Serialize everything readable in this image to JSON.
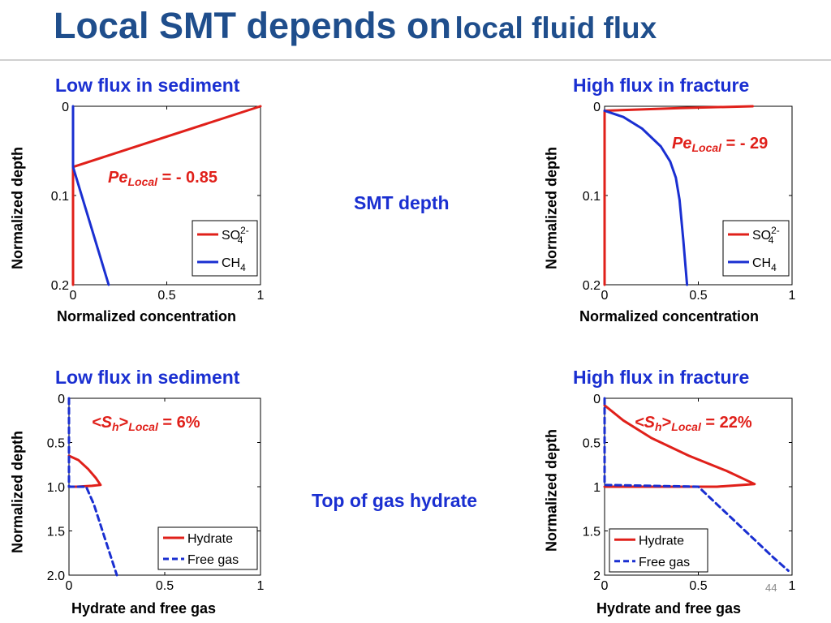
{
  "title": {
    "main": "Local SMT depends on",
    "sub": "local fluid flux"
  },
  "center_labels": {
    "smt": "SMT depth",
    "hydrate": "Top of gas hydrate"
  },
  "page_number": "44",
  "colors": {
    "title": "#1f4e8c",
    "panel_title": "#1a2fd1",
    "red": "#e0201a",
    "blue": "#1a2fd1"
  },
  "chart_data": [
    {
      "type": "line",
      "title": "Low flux in sediment",
      "xlabel": "Normalized concentration",
      "ylabel": "Normalized depth",
      "xlim": [
        0,
        1
      ],
      "ylim": [
        0,
        0.2
      ],
      "y_inverted": true,
      "xticks": [
        "0",
        "0.5",
        "1"
      ],
      "yticks": [
        "0",
        "0.1",
        "0.2"
      ],
      "annotation": {
        "pe": "Pe",
        "sub": "Local",
        "value": " = - 0.85"
      },
      "legend": {
        "placement": "bottom-right"
      },
      "series": [
        {
          "name": "SO",
          "sub": "4",
          "sup": "2-",
          "color": "#e0201a",
          "style": "solid",
          "points": [
            [
              1,
              0
            ],
            [
              0,
              0.068
            ],
            [
              0,
              0.2
            ]
          ]
        },
        {
          "name": "CH",
          "sub": "4",
          "color": "#1a2fd1",
          "style": "solid",
          "points": [
            [
              0,
              0
            ],
            [
              0,
              0.068
            ],
            [
              0.19,
              0.2
            ]
          ]
        }
      ]
    },
    {
      "type": "line",
      "title": "High flux in fracture",
      "xlabel": "Normalized concentration",
      "ylabel": "Normalized depth",
      "xlim": [
        0,
        1
      ],
      "ylim": [
        0,
        0.2
      ],
      "y_inverted": true,
      "xticks": [
        "0",
        "0.5",
        "1"
      ],
      "yticks": [
        "0",
        "0.1",
        "0.2"
      ],
      "annotation": {
        "pe": "Pe",
        "sub": "Local",
        "value": " = - 29"
      },
      "legend": {
        "placement": "bottom-right"
      },
      "series": [
        {
          "name": "SO",
          "sub": "4",
          "sup": "2-",
          "color": "#e0201a",
          "style": "solid",
          "points": [
            [
              0.79,
              0.0
            ],
            [
              0.4,
              0.002
            ],
            [
              0,
              0.005
            ],
            [
              0,
              0.2
            ]
          ]
        },
        {
          "name": "CH",
          "sub": "4",
          "color": "#1a2fd1",
          "style": "solid",
          "points": [
            [
              0,
              0.005
            ],
            [
              0.1,
              0.012
            ],
            [
              0.2,
              0.025
            ],
            [
              0.3,
              0.045
            ],
            [
              0.35,
              0.062
            ],
            [
              0.38,
              0.08
            ],
            [
              0.4,
              0.105
            ],
            [
              0.42,
              0.15
            ],
            [
              0.44,
              0.2
            ]
          ]
        }
      ]
    },
    {
      "type": "line",
      "title": "Low flux in sediment",
      "xlabel": "Hydrate and free gas",
      "ylabel": "Normalized depth",
      "xlim": [
        0,
        1
      ],
      "ylim": [
        0,
        2
      ],
      "y_inverted": true,
      "xticks": [
        "0",
        "0.5",
        "1"
      ],
      "yticks": [
        "0",
        "0.5",
        "1.0",
        "1.5",
        "2.0"
      ],
      "annotation": {
        "pe": "<S",
        "sub": "h",
        "after": ">",
        "sub2": "Local",
        "value": " =  6%"
      },
      "legend": {
        "placement": "bottom-right"
      },
      "series": [
        {
          "name": "Hydrate",
          "color": "#e0201a",
          "style": "solid",
          "points": [
            [
              0,
              0.65
            ],
            [
              0.05,
              0.7
            ],
            [
              0.1,
              0.8
            ],
            [
              0.14,
              0.9
            ],
            [
              0.165,
              0.98
            ],
            [
              0.12,
              0.99
            ],
            [
              0.04,
              1.0
            ],
            [
              0,
              1.0
            ]
          ]
        },
        {
          "name": "Free gas",
          "color": "#1a2fd1",
          "style": "dashed",
          "points": [
            [
              0,
              0
            ],
            [
              0,
              1.0
            ],
            [
              0.09,
              1.0
            ],
            [
              0.13,
              1.2
            ],
            [
              0.19,
              1.6
            ],
            [
              0.25,
              2.0
            ]
          ]
        }
      ]
    },
    {
      "type": "line",
      "title": "High flux in fracture",
      "xlabel": "Hydrate and free gas",
      "ylabel": "Normalized depth",
      "xlim": [
        0,
        1
      ],
      "ylim": [
        0,
        2
      ],
      "y_inverted": true,
      "xticks": [
        "0",
        "0.5",
        "1"
      ],
      "yticks": [
        "0",
        "0.5",
        "1",
        "1.5",
        "2"
      ],
      "annotation": {
        "pe": "<S",
        "sub": "h",
        "after": ">",
        "sub2": "Local",
        "value": " = 22%"
      },
      "legend": {
        "placement": "bottom-right"
      },
      "series": [
        {
          "name": "Hydrate",
          "color": "#e0201a",
          "style": "solid",
          "points": [
            [
              0,
              0.08
            ],
            [
              0.1,
              0.25
            ],
            [
              0.25,
              0.45
            ],
            [
              0.45,
              0.65
            ],
            [
              0.65,
              0.82
            ],
            [
              0.8,
              0.97
            ],
            [
              0.6,
              1.0
            ],
            [
              0,
              1.0
            ]
          ]
        },
        {
          "name": "Free gas",
          "color": "#1a2fd1",
          "style": "dashed",
          "points": [
            [
              0,
              0
            ],
            [
              0,
              0.98
            ],
            [
              0.5,
              1.0
            ],
            [
              0.6,
              1.2
            ],
            [
              0.75,
              1.5
            ],
            [
              0.9,
              1.8
            ],
            [
              0.98,
              1.95
            ]
          ]
        }
      ]
    }
  ]
}
